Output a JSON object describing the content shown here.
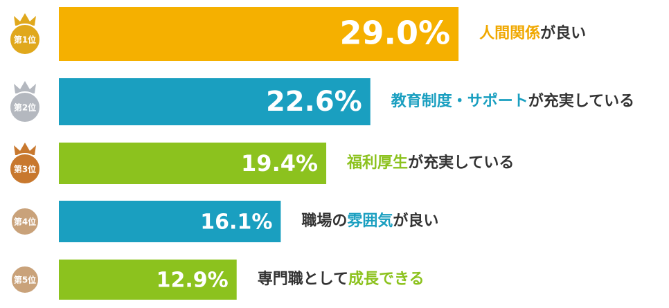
{
  "chart_data": {
    "type": "hbar",
    "ranks": [
      "第1位",
      "第2位",
      "第3位",
      "第4位",
      "第5位"
    ],
    "badge_colors": [
      "#e0a81c",
      "#b4b8bf",
      "#c8782e",
      "#c9a27a",
      "#c9a27a"
    ],
    "categories": [
      [
        {
          "text": "人間関係",
          "color": "#f0a800"
        },
        {
          "text": "が良い"
        }
      ],
      [
        {
          "text": "教育制度・サポート",
          "color": "#1a9fc0"
        },
        {
          "text": "が充実している"
        }
      ],
      [
        {
          "text": "福利厚生",
          "color": "#8cc21e"
        },
        {
          "text": "が充実している"
        }
      ],
      [
        {
          "text": "職場の"
        },
        {
          "text": "雰囲気",
          "color": "#1a9fc0"
        },
        {
          "text": "が良い"
        }
      ],
      [
        {
          "text": "専門職として"
        },
        {
          "text": "成長できる",
          "color": "#8cc21e"
        }
      ]
    ],
    "values": [
      29.0,
      22.6,
      19.4,
      16.1,
      12.9
    ],
    "value_labels": [
      "29.0%",
      "22.6%",
      "19.4%",
      "16.1%",
      "12.9%"
    ],
    "colors": [
      "#f5b000",
      "#1a9fc0",
      "#8cc21e",
      "#1a9fc0",
      "#8cc21e"
    ]
  }
}
